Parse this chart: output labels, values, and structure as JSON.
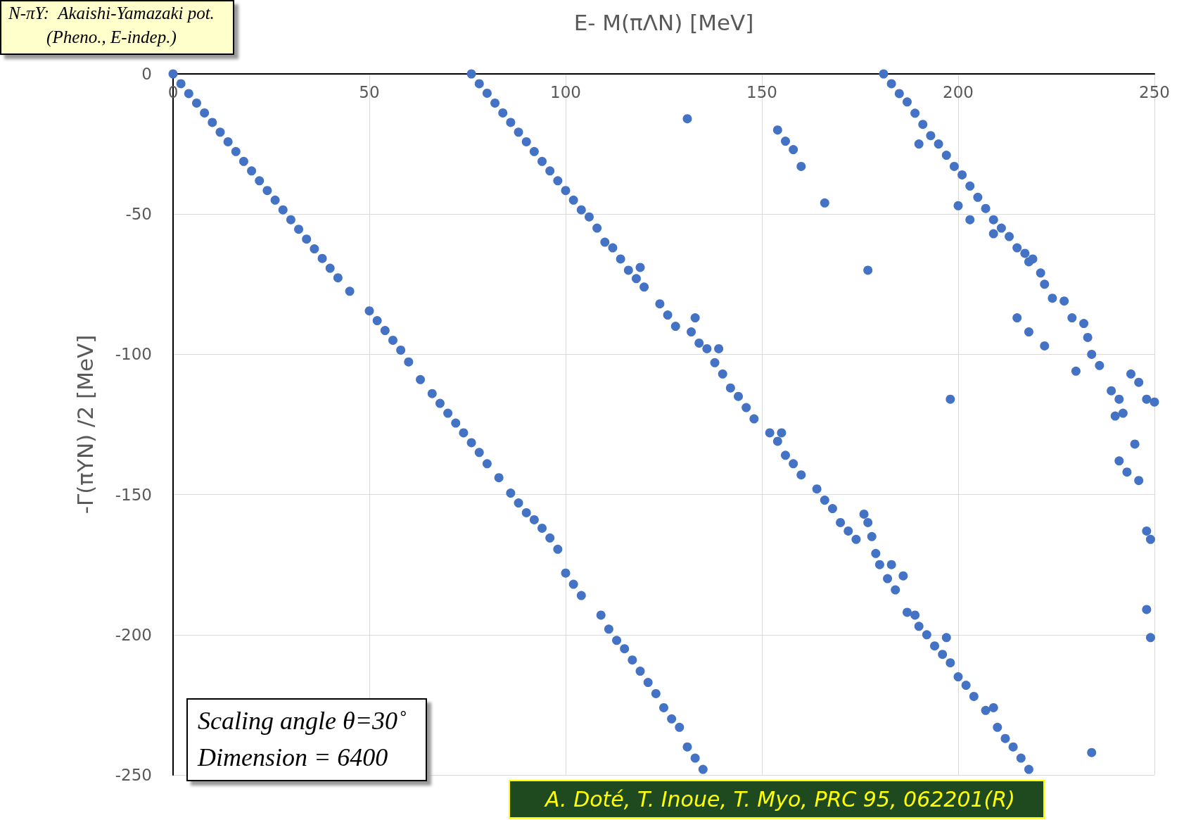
{
  "chart_data": {
    "type": "scatter",
    "xlabel": "E- M(πΛN) [MeV]",
    "ylabel": "-Γ(πYN) /2 [MeV]",
    "annotations": [
      "N-πY:  Akaishi-Yamazaki pot.\n(Pheno., E-indep.)",
      "Scaling angle θ=30˚\nDimension = 6400",
      "A. Doté, T. Inoue, T. Myo, PRC 95, 062201(R)"
    ],
    "xlim": [
      0,
      250
    ],
    "xticks": [
      0,
      50,
      100,
      150,
      200,
      250
    ],
    "ylim": [
      -250,
      0
    ],
    "yticks": [
      -250,
      -200,
      -150,
      -100,
      -50,
      0
    ],
    "grid": true,
    "marker": "circle",
    "series": [
      {
        "color": "#4472c4",
        "x": [
          0,
          2,
          4,
          6,
          8,
          10,
          12,
          14,
          16,
          18,
          20,
          22,
          24,
          26,
          28,
          30,
          32,
          34,
          36,
          38,
          40,
          42,
          45,
          50,
          52,
          54,
          56,
          58,
          60,
          63,
          66,
          68,
          70,
          72,
          74,
          76,
          78,
          80,
          83,
          86,
          88,
          90,
          92,
          94,
          96,
          98,
          100,
          102,
          104,
          109,
          111,
          113,
          115,
          117,
          119,
          121,
          123,
          125,
          127,
          129,
          131,
          133,
          135,
          76,
          78,
          80,
          82,
          84,
          86,
          88,
          90,
          92,
          94,
          96,
          98,
          100,
          102,
          104,
          106,
          108,
          110,
          112,
          114,
          116,
          118,
          119,
          120,
          124,
          126,
          128,
          132,
          133,
          134,
          136,
          138,
          139,
          140,
          142,
          144,
          146,
          148,
          152,
          154,
          155,
          156,
          158,
          160,
          164,
          166,
          168,
          170,
          172,
          174,
          176,
          177,
          178,
          179,
          180,
          182,
          183,
          184,
          186,
          187,
          189,
          190,
          192,
          194,
          196,
          197,
          198,
          200,
          202,
          204,
          207,
          209,
          210,
          212,
          214,
          216,
          218,
          181,
          183,
          185,
          187,
          189,
          190,
          191,
          193,
          195,
          197,
          199,
          201,
          203,
          205,
          200,
          203,
          207,
          209,
          211,
          213,
          209,
          215,
          217,
          219,
          221,
          218,
          222,
          224,
          227,
          229,
          232,
          215,
          218,
          222,
          233,
          234,
          230,
          236,
          239,
          241,
          244,
          246,
          248,
          250,
          240,
          242,
          245,
          241,
          243,
          246,
          248,
          249,
          248,
          249,
          131,
          154,
          156,
          158,
          160,
          166,
          177,
          198,
          234
        ],
        "values": [
          0,
          -3.5,
          -7,
          -10.4,
          -13.9,
          -17.3,
          -20.8,
          -24.2,
          -27.7,
          -31.2,
          -34.6,
          -38.1,
          -41.6,
          -45,
          -48.5,
          -52,
          -55.4,
          -58.9,
          -62.4,
          -65.8,
          -69.3,
          -72.7,
          -77.5,
          -84.5,
          -88,
          -91.5,
          -95,
          -98.5,
          -102.7,
          -109,
          -114,
          -117.5,
          -121,
          -124.5,
          -128,
          -131.5,
          -135,
          -139,
          -144,
          -149.5,
          -153,
          -156.5,
          -159,
          -162,
          -165.5,
          -169.5,
          -178,
          -182,
          -186,
          -193,
          -198,
          -202,
          -205,
          -209,
          -213,
          -217,
          -221,
          -226,
          -230,
          -233,
          -240,
          -244,
          -248,
          0,
          -3.5,
          -6.9,
          -10.4,
          -13.9,
          -17.3,
          -20.8,
          -24.2,
          -27.7,
          -31.2,
          -34.6,
          -38.1,
          -41.6,
          -45,
          -48.5,
          -51,
          -55,
          -60,
          -62,
          -66,
          -70,
          -73,
          -69,
          -76,
          -82,
          -86,
          -90,
          -92,
          -87,
          -96,
          -98,
          -103,
          -98,
          -107,
          -112,
          -115,
          -119,
          -123,
          -128,
          -131,
          -128,
          -136,
          -139,
          -143,
          -148,
          -152,
          -155,
          -160,
          -163,
          -166,
          -157,
          -160,
          -165,
          -171,
          -175,
          -180,
          -175,
          -184,
          -179,
          -192,
          -193,
          -197,
          -200,
          -204,
          -207,
          -201,
          -210,
          -215,
          -218,
          -222,
          -227,
          -226,
          -233,
          -237,
          -240,
          -244,
          -248,
          0,
          -3.5,
          -7,
          -10,
          -14,
          -25,
          -18,
          -22,
          -25,
          -29,
          -33,
          -36,
          -40,
          -44,
          -47,
          -52,
          -48,
          -52,
          -55,
          -58,
          -57,
          -62,
          -64,
          -66,
          -71,
          -67,
          -75,
          -80,
          -81,
          -87,
          -89,
          -87,
          -92,
          -97,
          -94,
          -100,
          -106,
          -104,
          -113,
          -116,
          -107,
          -110,
          -116,
          -117,
          -122,
          -121,
          -132,
          -138,
          -142,
          -145,
          -163,
          -166,
          -191,
          -201,
          -16,
          -20,
          -24,
          -27,
          -33,
          -46,
          -70,
          -116,
          -242
        ]
      }
    ]
  }
}
